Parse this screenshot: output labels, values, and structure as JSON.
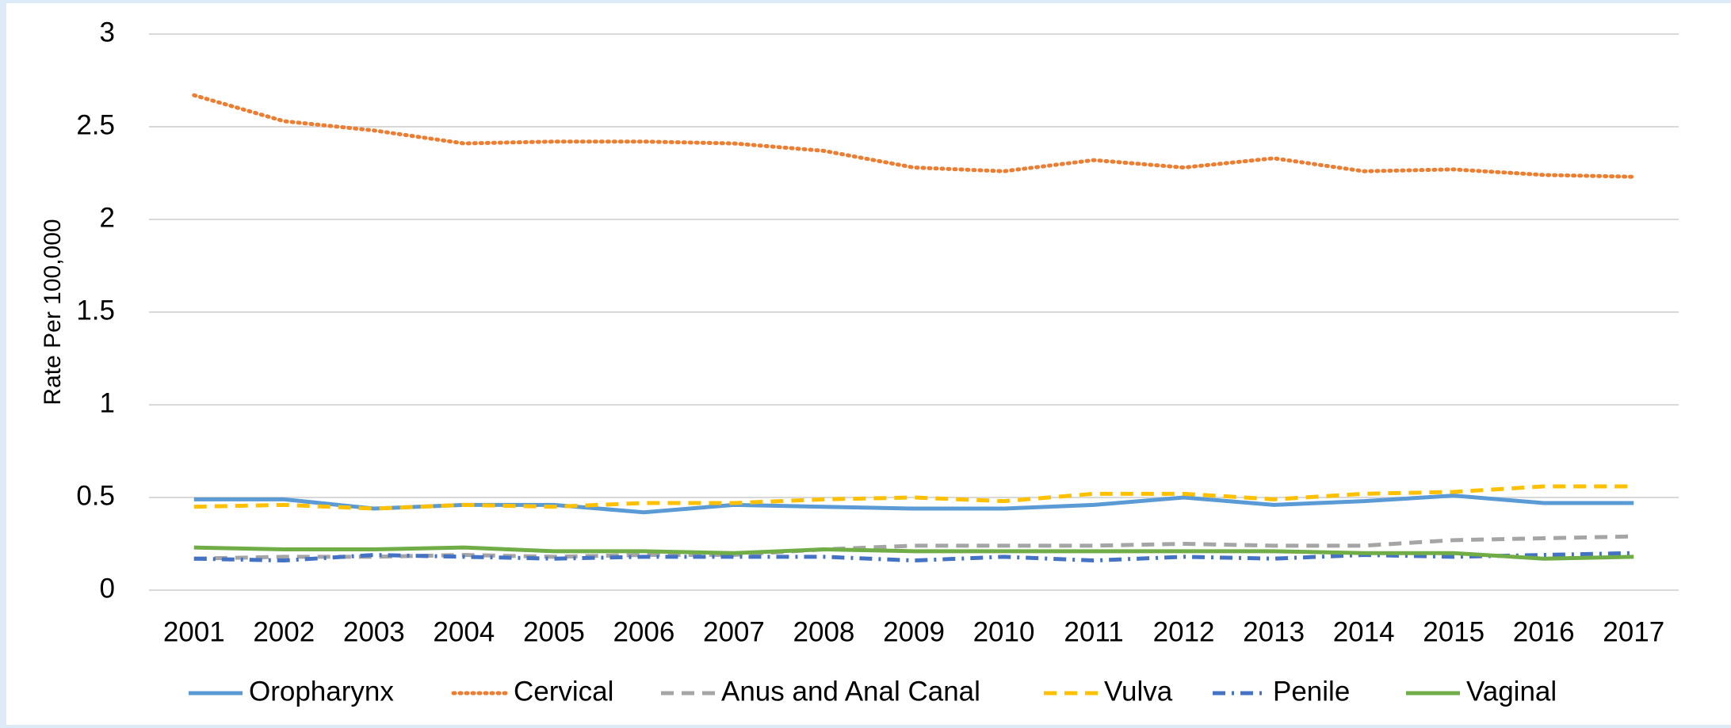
{
  "chart_data": {
    "type": "line",
    "ylabel": "Rate Per 100,000",
    "categories": [
      "2001",
      "2002",
      "2003",
      "2004",
      "2005",
      "2006",
      "2007",
      "2008",
      "2009",
      "2010",
      "2011",
      "2012",
      "2013",
      "2014",
      "2015",
      "2016",
      "2017"
    ],
    "ylim": [
      0,
      3
    ],
    "yticks": [
      0,
      0.5,
      1,
      1.5,
      2,
      2.5,
      3
    ],
    "grid": true,
    "legend": "bottom",
    "series": [
      {
        "name": "Oropharynx",
        "color": "#5b9bd5",
        "dash": "solid",
        "values": [
          0.49,
          0.49,
          0.44,
          0.46,
          0.46,
          0.42,
          0.46,
          0.45,
          0.44,
          0.44,
          0.46,
          0.5,
          0.46,
          0.48,
          0.51,
          0.47,
          0.47
        ]
      },
      {
        "name": "Cervical",
        "color": "#ed7d31",
        "dash": "dotted",
        "values": [
          2.67,
          2.53,
          2.48,
          2.41,
          2.42,
          2.42,
          2.41,
          2.37,
          2.28,
          2.26,
          2.32,
          2.28,
          2.33,
          2.26,
          2.27,
          2.24,
          2.23
        ]
      },
      {
        "name": "Anus and Anal Canal",
        "color": "#a5a5a5",
        "dash": "dashed",
        "values": [
          0.17,
          0.18,
          0.18,
          0.19,
          0.18,
          0.19,
          0.19,
          0.22,
          0.24,
          0.24,
          0.24,
          0.25,
          0.24,
          0.24,
          0.27,
          0.28,
          0.29
        ]
      },
      {
        "name": "Vulva",
        "color": "#ffc000",
        "dash": "dashed",
        "values": [
          0.45,
          0.46,
          0.44,
          0.46,
          0.45,
          0.47,
          0.47,
          0.49,
          0.5,
          0.48,
          0.52,
          0.52,
          0.49,
          0.52,
          0.53,
          0.56,
          0.56
        ]
      },
      {
        "name": "Penile",
        "color": "#4472c4",
        "dash": "dashdot",
        "values": [
          0.17,
          0.16,
          0.19,
          0.18,
          0.17,
          0.18,
          0.18,
          0.18,
          0.16,
          0.18,
          0.16,
          0.18,
          0.17,
          0.19,
          0.18,
          0.19,
          0.2
        ]
      },
      {
        "name": "Vaginal",
        "color": "#70ad47",
        "dash": "solid",
        "values": [
          0.23,
          0.22,
          0.22,
          0.23,
          0.21,
          0.21,
          0.2,
          0.22,
          0.21,
          0.21,
          0.21,
          0.21,
          0.21,
          0.2,
          0.2,
          0.17,
          0.18
        ]
      }
    ]
  }
}
